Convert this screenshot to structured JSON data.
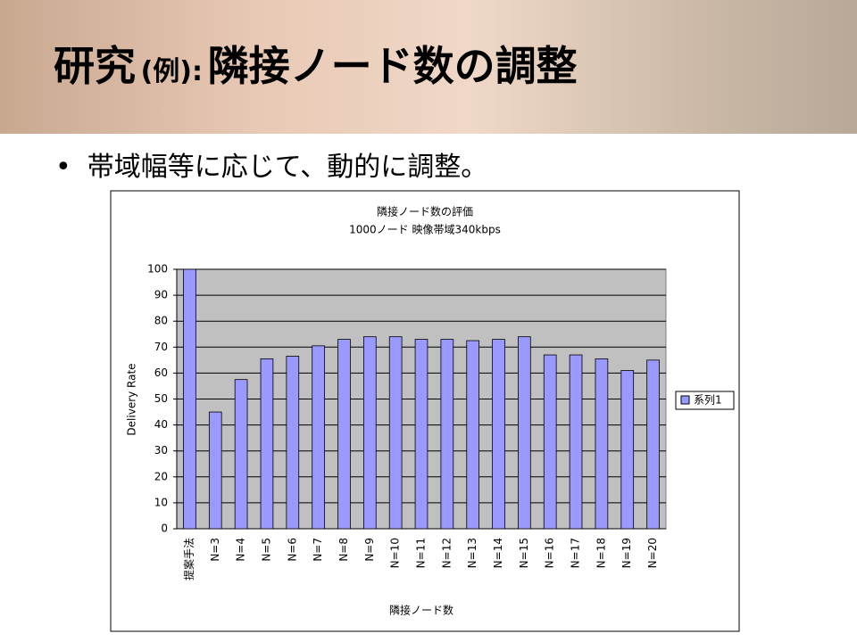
{
  "slide": {
    "title": [
      "研究",
      "(例):",
      "隣接ノード数の調整"
    ],
    "bullet": "帯域幅等に応じて、動的に調整。"
  },
  "chart_data": {
    "type": "bar",
    "title": "隣接ノード数の評価",
    "subtitle": "1000ノード 映像帯域340kbps",
    "y_label": "Delivery Rate",
    "x_label": "隣接ノード数",
    "categories": [
      "提案手法",
      "N=3",
      "N=4",
      "N=5",
      "N=6",
      "N=7",
      "N=8",
      "N=9",
      "N=10",
      "N=11",
      "N=12",
      "N=13",
      "N=14",
      "N=15",
      "N=16",
      "N=17",
      "N=18",
      "N=19",
      "N=20"
    ],
    "series": [
      {
        "name": "系列1",
        "color": "#9999ff",
        "values": [
          100,
          45,
          57.5,
          65.5,
          66.5,
          70.5,
          73,
          74,
          74,
          73,
          73,
          72.5,
          73,
          74,
          67,
          67,
          65.5,
          61,
          65
        ]
      }
    ],
    "ylim": [
      0,
      100
    ],
    "yticks": [
      0,
      10,
      20,
      30,
      40,
      50,
      60,
      70,
      80,
      90,
      100
    ],
    "grid": true,
    "legend": "right"
  }
}
